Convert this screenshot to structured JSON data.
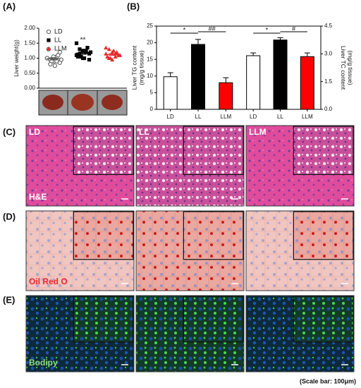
{
  "chart_data": [
    {
      "type": "scatter",
      "ylabel": "Liver weight(g)",
      "ylim": [
        0,
        2
      ],
      "yticks": [
        {
          "value": 0,
          "label": "0.00"
        },
        {
          "value": 0.5,
          "label": "0.50"
        },
        {
          "value": 1,
          "label": "1.00"
        },
        {
          "value": 1.5,
          "label": "1.50"
        },
        {
          "value": 2,
          "label": "2.00"
        }
      ],
      "annotations": [
        "**"
      ],
      "series": [
        {
          "name": "LD",
          "color": "#555555",
          "marker": "open-circle",
          "values": [
            1.0,
            0.95,
            0.9,
            1.05,
            0.85,
            1.3,
            0.9,
            0.75,
            1.1,
            0.95,
            1.0,
            0.8,
            1.05,
            0.9,
            1.2
          ],
          "mean": 0.98,
          "sem": 0.04
        },
        {
          "name": "LL",
          "color": "#000000",
          "marker": "square",
          "values": [
            1.5,
            1.3,
            1.25,
            1.2,
            1.15,
            1.1,
            1.05,
            1.0,
            1.35,
            1.2,
            1.1,
            1.15,
            1.0,
            1.25,
            0.95,
            1.05
          ],
          "mean": 1.17,
          "sem": 0.04
        },
        {
          "name": "LLM",
          "color": "#e8262b",
          "marker": "triangle",
          "values": [
            1.35,
            1.3,
            1.2,
            1.15,
            1.1,
            1.05,
            1.0,
            1.25,
            1.2,
            1.1,
            1.15,
            1.0,
            0.95,
            1.05,
            1.1
          ],
          "mean": 1.12,
          "sem": 0.03
        }
      ]
    },
    {
      "type": "bar",
      "ylabel": [
        "Liver TG content",
        "(mg/g tissue)"
      ],
      "categories": [
        "LD",
        "LL",
        "LLM"
      ],
      "values": [
        9.8,
        19.5,
        8.0
      ],
      "errors": [
        1.2,
        1.5,
        1.5
      ],
      "colors": [
        "#ffffff",
        "#000000",
        "#ff0000"
      ],
      "ylim": [
        0,
        25
      ],
      "yticks": [
        0,
        5,
        10,
        15,
        20,
        25
      ],
      "annotations": [
        "*",
        "##"
      ]
    },
    {
      "type": "bar",
      "y2label": [
        "Liver TC content",
        "(mg/g tissue)"
      ],
      "categories": [
        "LD",
        "LL",
        "LLM"
      ],
      "values": [
        2.9,
        3.75,
        2.85
      ],
      "errors": [
        0.15,
        0.12,
        0.2
      ],
      "colors": [
        "#ffffff",
        "#000000",
        "#ff0000"
      ],
      "y2lim": [
        0,
        4.5
      ],
      "y2ticks": [
        {
          "value": 0,
          "label": "0.0"
        },
        {
          "value": 1.5,
          "label": "1.5"
        },
        {
          "value": 3,
          "label": "3.0"
        },
        {
          "value": 4.5,
          "label": "4.5"
        }
      ],
      "annotations": [
        "*",
        "#"
      ]
    }
  ],
  "figure": {
    "panel_labels": [
      "(A)",
      "(B)",
      "(C)",
      "(D)",
      "(E)"
    ],
    "image_labels": [
      "LD",
      "LL",
      "LLM"
    ],
    "stains": [
      "H&E",
      "Oil Red O",
      "Bodipy"
    ],
    "scale_bar": "(Scale bar: 100μm)"
  }
}
